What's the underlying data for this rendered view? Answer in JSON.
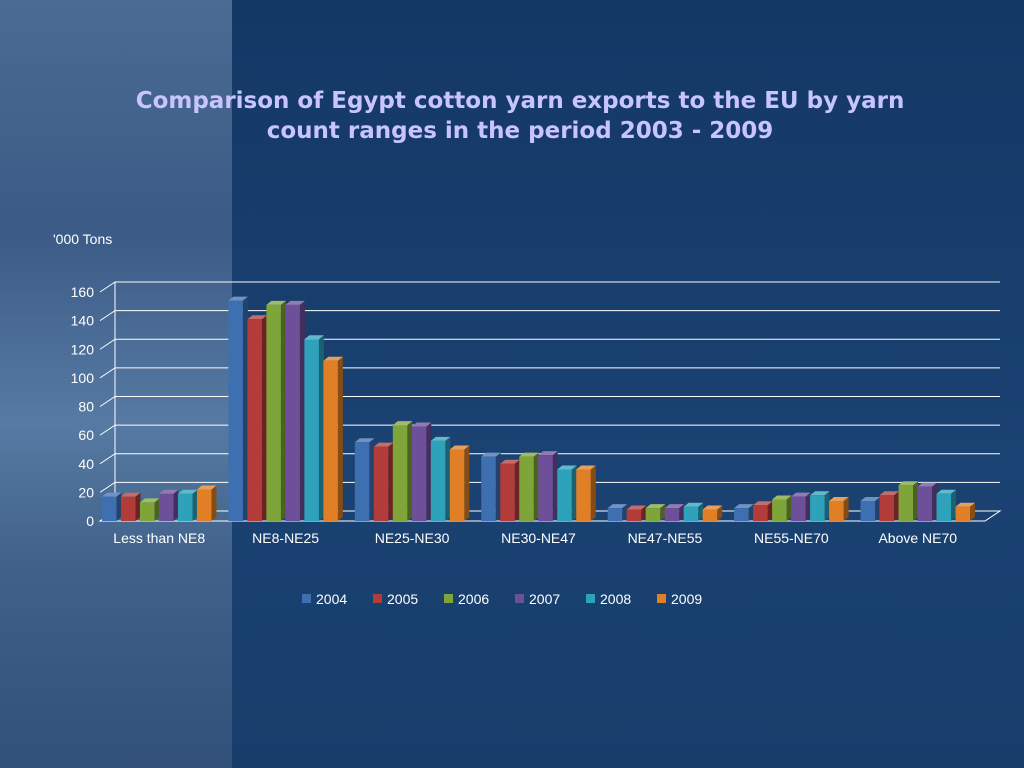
{
  "title": "Comparison of Egypt cotton yarn exports to the EU by yarn count ranges in the period 2003 - 2009",
  "chart_data": {
    "type": "bar",
    "title": "Comparison of Egypt cotton yarn exports to the EU by yarn count ranges in the period 2003 - 2009",
    "ylabel": "'000 Tons",
    "xlabel": "",
    "ylim": [
      0,
      160
    ],
    "yticks": [
      0,
      20,
      40,
      60,
      80,
      100,
      120,
      140,
      160
    ],
    "grid": true,
    "legend_position": "bottom",
    "categories": [
      "Less than NE8",
      "NE8-NE25",
      "NE25-NE30",
      "NE30-NE47",
      "NE47-NE55",
      "NE55-NE70",
      "Above NE70"
    ],
    "series": [
      {
        "name": "2004",
        "color": "#3e6fb0",
        "values": [
          17,
          154,
          55,
          45,
          9,
          9,
          14
        ]
      },
      {
        "name": "2005",
        "color": "#b23c3a",
        "values": [
          17,
          141,
          52,
          40,
          8,
          11,
          18
        ]
      },
      {
        "name": "2006",
        "color": "#7ea43a",
        "values": [
          13,
          151,
          67,
          45,
          9,
          15,
          25
        ]
      },
      {
        "name": "2007",
        "color": "#6e4f99",
        "values": [
          19,
          151,
          66,
          46,
          9,
          17,
          24
        ]
      },
      {
        "name": "2008",
        "color": "#2fa2bb",
        "values": [
          19,
          127,
          56,
          36,
          10,
          18,
          19
        ]
      },
      {
        "name": "2009",
        "color": "#e07f25",
        "values": [
          22,
          112,
          50,
          36,
          8,
          14,
          10
        ]
      }
    ]
  }
}
